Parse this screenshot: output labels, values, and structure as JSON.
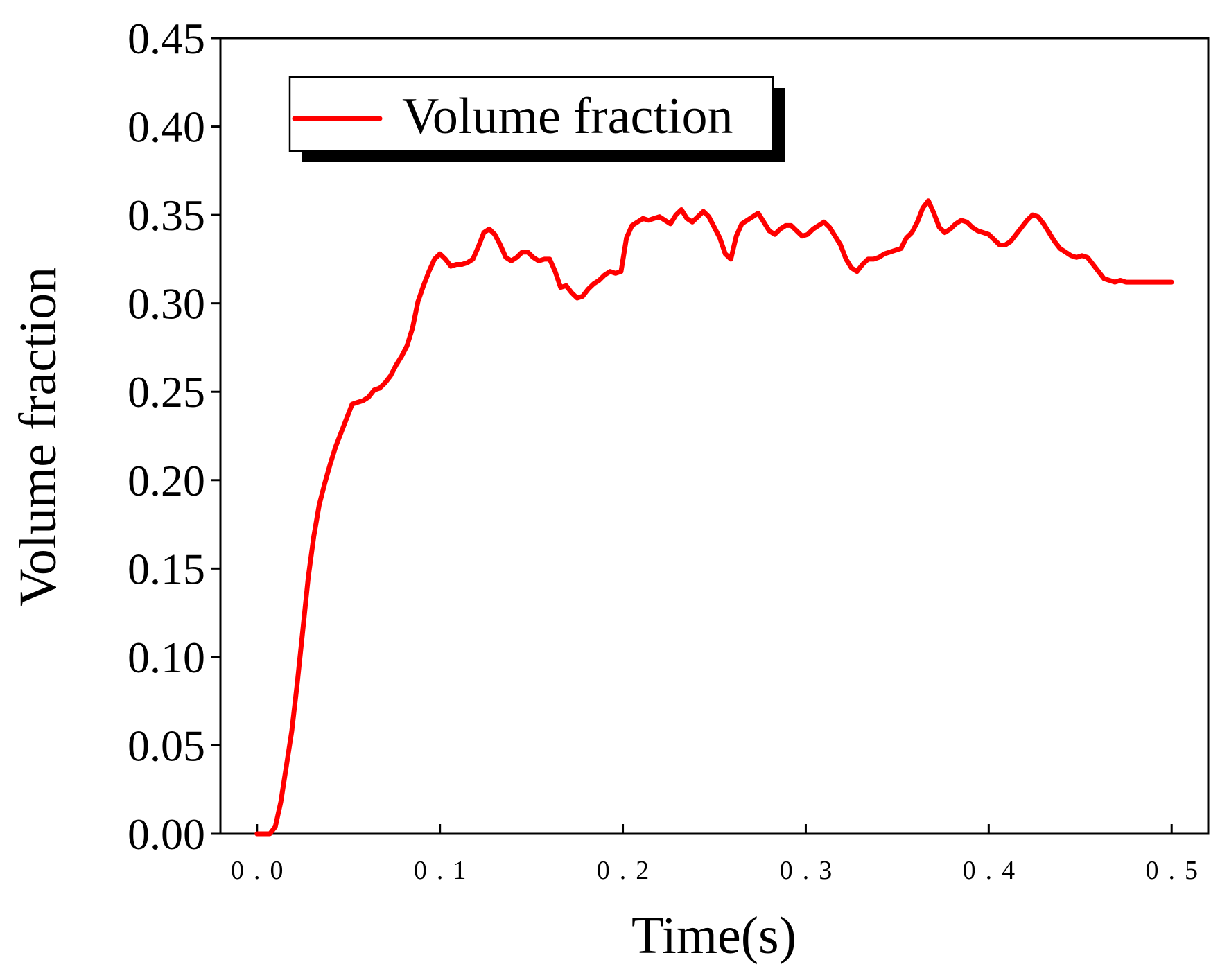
{
  "chart_data": {
    "type": "line",
    "title": "",
    "xlabel": "Time(s)",
    "ylabel": "Volume fraction",
    "xlim": [
      -0.02,
      0.52
    ],
    "ylim": [
      0.0,
      0.45
    ],
    "xticks": [
      0.0,
      0.1,
      0.2,
      0.3,
      0.4,
      0.5
    ],
    "xtick_labels": [
      "0.0",
      "0.1",
      "0.2",
      "0.3",
      "0.4",
      "0.5"
    ],
    "yticks": [
      0.0,
      0.05,
      0.1,
      0.15,
      0.2,
      0.25,
      0.3,
      0.35,
      0.4,
      0.45
    ],
    "ytick_labels": [
      "0.00",
      "0.05",
      "0.10",
      "0.15",
      "0.20",
      "0.25",
      "0.30",
      "0.35",
      "0.40",
      "0.45"
    ],
    "legend": {
      "position": "top-left",
      "entries": [
        "Volume fraction"
      ]
    },
    "series": [
      {
        "name": "Volume fraction",
        "color": "#ff0000",
        "x": [
          0.0,
          0.007,
          0.01,
          0.013,
          0.016,
          0.019,
          0.022,
          0.025,
          0.028,
          0.031,
          0.034,
          0.037,
          0.04,
          0.043,
          0.046,
          0.049,
          0.052,
          0.055,
          0.058,
          0.061,
          0.064,
          0.067,
          0.07,
          0.073,
          0.076,
          0.079,
          0.082,
          0.085,
          0.088,
          0.091,
          0.094,
          0.097,
          0.1,
          0.103,
          0.106,
          0.109,
          0.112,
          0.115,
          0.118,
          0.121,
          0.124,
          0.127,
          0.13,
          0.133,
          0.136,
          0.139,
          0.142,
          0.145,
          0.148,
          0.151,
          0.154,
          0.157,
          0.16,
          0.163,
          0.166,
          0.169,
          0.172,
          0.175,
          0.178,
          0.181,
          0.184,
          0.187,
          0.19,
          0.193,
          0.196,
          0.199,
          0.202,
          0.205,
          0.208,
          0.211,
          0.214,
          0.217,
          0.22,
          0.223,
          0.226,
          0.229,
          0.232,
          0.235,
          0.238,
          0.241,
          0.244,
          0.247,
          0.25,
          0.253,
          0.256,
          0.259,
          0.262,
          0.265,
          0.268,
          0.271,
          0.274,
          0.277,
          0.28,
          0.283,
          0.286,
          0.289,
          0.292,
          0.295,
          0.298,
          0.301,
          0.304,
          0.307,
          0.31,
          0.313,
          0.316,
          0.319,
          0.322,
          0.325,
          0.328,
          0.331,
          0.334,
          0.337,
          0.34,
          0.343,
          0.346,
          0.349,
          0.352,
          0.355,
          0.358,
          0.361,
          0.364,
          0.367,
          0.37,
          0.373,
          0.376,
          0.379,
          0.382,
          0.385,
          0.388,
          0.391,
          0.394,
          0.397,
          0.4,
          0.403,
          0.406,
          0.409,
          0.412,
          0.415,
          0.418,
          0.421,
          0.424,
          0.427,
          0.43,
          0.433,
          0.436,
          0.439,
          0.442,
          0.445,
          0.448,
          0.451,
          0.454,
          0.457,
          0.46,
          0.463,
          0.466,
          0.469,
          0.472,
          0.475,
          0.478,
          0.481,
          0.484,
          0.487,
          0.49,
          0.493,
          0.496,
          0.5
        ],
        "y": [
          0.0,
          0.0,
          0.004,
          0.018,
          0.038,
          0.058,
          0.085,
          0.115,
          0.145,
          0.168,
          0.186,
          0.198,
          0.209,
          0.219,
          0.227,
          0.235,
          0.243,
          0.244,
          0.245,
          0.247,
          0.251,
          0.252,
          0.255,
          0.259,
          0.265,
          0.27,
          0.276,
          0.286,
          0.301,
          0.31,
          0.318,
          0.325,
          0.328,
          0.325,
          0.321,
          0.322,
          0.322,
          0.323,
          0.325,
          0.332,
          0.34,
          0.342,
          0.339,
          0.333,
          0.326,
          0.324,
          0.326,
          0.329,
          0.329,
          0.326,
          0.324,
          0.325,
          0.325,
          0.318,
          0.309,
          0.31,
          0.306,
          0.303,
          0.304,
          0.308,
          0.311,
          0.313,
          0.316,
          0.318,
          0.317,
          0.318,
          0.337,
          0.344,
          0.346,
          0.348,
          0.347,
          0.348,
          0.349,
          0.347,
          0.345,
          0.35,
          0.353,
          0.348,
          0.346,
          0.349,
          0.352,
          0.349,
          0.343,
          0.337,
          0.328,
          0.325,
          0.338,
          0.345,
          0.347,
          0.349,
          0.351,
          0.346,
          0.341,
          0.339,
          0.342,
          0.344,
          0.344,
          0.341,
          0.338,
          0.339,
          0.342,
          0.344,
          0.346,
          0.343,
          0.338,
          0.333,
          0.325,
          0.32,
          0.318,
          0.322,
          0.325,
          0.325,
          0.326,
          0.328,
          0.329,
          0.33,
          0.331,
          0.337,
          0.34,
          0.346,
          0.354,
          0.358,
          0.351,
          0.343,
          0.34,
          0.342,
          0.345,
          0.347,
          0.346,
          0.343,
          0.341,
          0.34,
          0.339,
          0.336,
          0.333,
          0.333,
          0.335,
          0.339,
          0.343,
          0.347,
          0.35,
          0.349,
          0.345,
          0.34,
          0.335,
          0.331,
          0.329,
          0.327,
          0.326,
          0.327,
          0.326,
          0.322,
          0.318,
          0.314,
          0.313,
          0.312,
          0.313,
          0.312,
          0.312,
          0.312,
          0.312,
          0.312,
          0.312,
          0.312,
          0.312,
          0.312
        ]
      }
    ]
  }
}
